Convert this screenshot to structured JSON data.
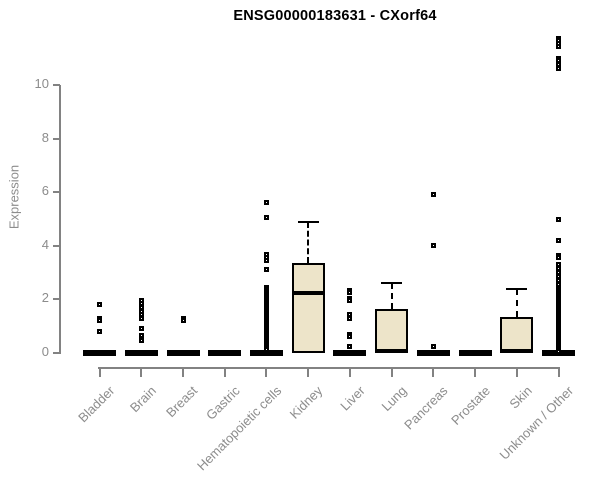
{
  "chart_data": {
    "type": "boxplot",
    "title": "ENSG00000183631 - CXorf64",
    "xlabel": "",
    "ylabel": "Expression",
    "yticks": [
      0,
      2,
      4,
      6,
      8,
      10
    ],
    "ylim": [
      0,
      11.9
    ],
    "layout": {
      "grid": false,
      "legend": false,
      "x_labels_rotated_deg": 45
    },
    "colors": {
      "box_fill": "#EDE4C9",
      "box_border": "#000000",
      "axis": "#828282",
      "labels": "#8C8C8C",
      "title": "#000000"
    },
    "categories": [
      "Bladder",
      "Brain",
      "Breast",
      "Gastric",
      "Hematopoietic cells",
      "Kidney",
      "Liver",
      "Lung",
      "Pancreas",
      "Prostate",
      "Skin",
      "Unknown / Other"
    ],
    "series": [
      {
        "label": "Bladder",
        "q1": 0,
        "median": 0,
        "q3": 0,
        "whisker_low": 0,
        "whisker_high": 0,
        "outliers": [
          1.8,
          1.3,
          1.2,
          0.8
        ]
      },
      {
        "label": "Brain",
        "q1": 0,
        "median": 0,
        "q3": 0,
        "whisker_low": 0,
        "whisker_high": 0,
        "outliers": [
          1.95,
          1.85,
          1.7,
          1.55,
          1.45,
          1.3,
          0.9,
          0.65,
          0.45
        ]
      },
      {
        "label": "Breast",
        "q1": 0,
        "median": 0,
        "q3": 0,
        "whisker_low": 0,
        "whisker_high": 0,
        "outliers": [
          1.3,
          1.2
        ]
      },
      {
        "label": "Gastric",
        "q1": 0,
        "median": 0,
        "q3": 0,
        "whisker_low": 0,
        "whisker_high": 0,
        "outliers": []
      },
      {
        "label": "Hematopoietic cells",
        "q1": 0,
        "median": 0,
        "q3": 0,
        "whisker_low": 0,
        "whisker_high": 0,
        "outliers": [
          5.6,
          5.05,
          3.66,
          3.56,
          3.46,
          3.12,
          2.43,
          2.38,
          2.33,
          2.28,
          2.23,
          2.18,
          2.13,
          2.08,
          2.03,
          1.98,
          1.93,
          1.88,
          1.83,
          1.78,
          1.73,
          1.68,
          1.63,
          1.58,
          1.53,
          1.48,
          1.43,
          1.38,
          1.33,
          1.28,
          1.23,
          1.18,
          1.13,
          1.08,
          1.03,
          0.98,
          0.93,
          0.88,
          0.83,
          0.78,
          0.73,
          0.68,
          0.63,
          0.58,
          0.53,
          0.48,
          0.43,
          0.38,
          0.33,
          0.28,
          0.23,
          0.18,
          0.12
        ]
      },
      {
        "label": "Kidney",
        "q1": 0,
        "median": 2.25,
        "q3": 3.35,
        "whisker_low": 0,
        "whisker_high": 4.9,
        "outliers": []
      },
      {
        "label": "Liver",
        "q1": 0,
        "median": 0,
        "q3": 0,
        "whisker_low": 0,
        "whisker_high": 0,
        "outliers": [
          2.35,
          2.25,
          2.05,
          1.95,
          1.45,
          1.3,
          0.7,
          0.6,
          0.25
        ]
      },
      {
        "label": "Lung",
        "q1": 0,
        "median": 0,
        "q3": 1.65,
        "whisker_low": 0,
        "whisker_high": 2.6,
        "outliers": []
      },
      {
        "label": "Pancreas",
        "q1": 0,
        "median": 0,
        "q3": 0,
        "whisker_low": 0,
        "whisker_high": 0,
        "outliers": [
          5.9,
          4.0,
          0.25
        ]
      },
      {
        "label": "Prostate",
        "q1": 0,
        "median": 0,
        "q3": 0,
        "whisker_low": 0,
        "whisker_high": 0,
        "outliers": []
      },
      {
        "label": "Skin",
        "q1": 0,
        "median": 0,
        "q3": 1.35,
        "whisker_low": 0,
        "whisker_high": 2.4,
        "outliers": []
      },
      {
        "label": "Unknown / Other",
        "q1": 0,
        "median": 0,
        "q3": 0,
        "whisker_low": 0,
        "whisker_high": 0,
        "outliers": [
          11.75,
          11.65,
          11.55,
          11.45,
          11.0,
          10.9,
          10.75,
          10.6,
          5.0,
          4.2,
          3.65,
          3.55,
          3.3,
          3.15,
          3.0,
          2.85,
          2.7,
          2.55,
          2.45,
          2.4,
          2.35,
          2.3,
          2.25,
          2.2,
          2.15,
          2.1,
          2.05,
          2.0,
          1.95,
          1.9,
          1.85,
          1.8,
          1.75,
          1.7,
          1.65,
          1.6,
          1.55,
          1.5,
          1.45,
          1.4,
          1.35,
          1.3,
          1.25,
          1.2,
          1.15,
          1.1,
          1.05,
          1.0,
          0.95,
          0.9,
          0.85,
          0.8,
          0.75,
          0.7,
          0.65,
          0.6,
          0.55,
          0.5,
          0.45,
          0.4,
          0.35,
          0.3,
          0.25,
          0.2,
          0.15,
          0.1,
          0.05
        ]
      }
    ]
  }
}
